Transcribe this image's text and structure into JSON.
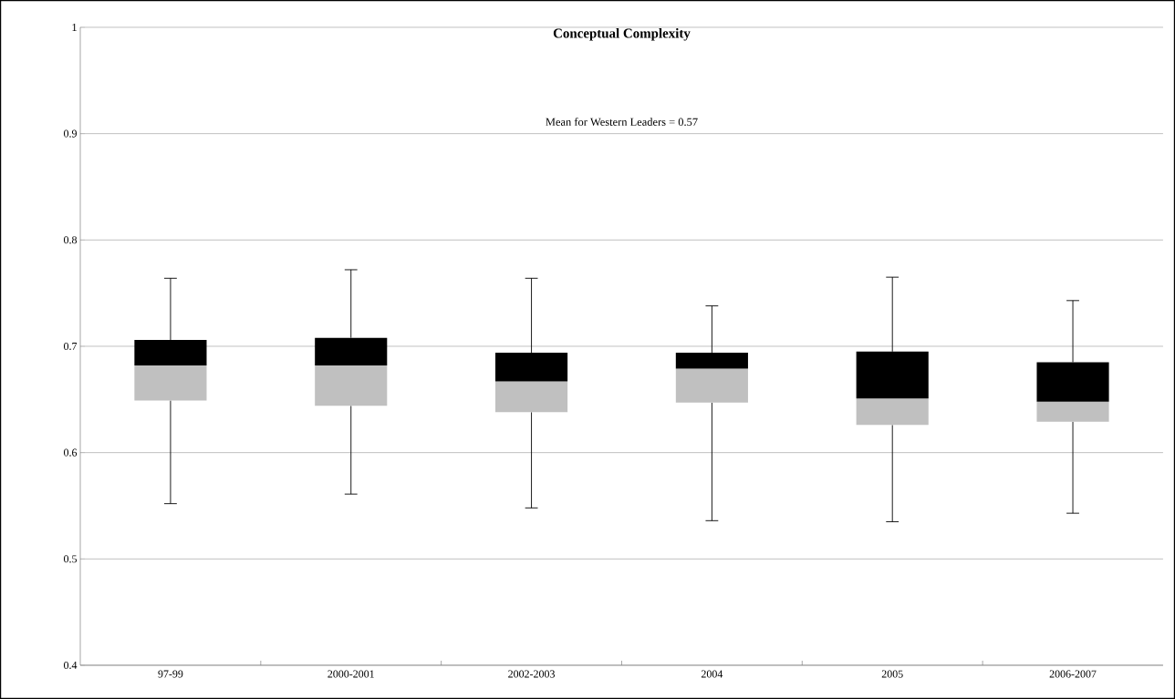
{
  "chart_data": {
    "type": "box",
    "title": "Conceptual Complexity",
    "annotations": [
      "Mean for Western Leaders = 0.57"
    ],
    "categories": [
      "97-99",
      "2000-2001",
      "2002-2003",
      "2004",
      "2005",
      "2006-2007"
    ],
    "boxes": [
      {
        "low": 0.552,
        "q1": 0.649,
        "median": 0.682,
        "q3": 0.706,
        "high": 0.764
      },
      {
        "low": 0.561,
        "q1": 0.644,
        "median": 0.682,
        "q3": 0.708,
        "high": 0.772
      },
      {
        "low": 0.548,
        "q1": 0.638,
        "median": 0.667,
        "q3": 0.694,
        "high": 0.764
      },
      {
        "low": 0.536,
        "q1": 0.647,
        "median": 0.679,
        "q3": 0.694,
        "high": 0.738
      },
      {
        "low": 0.535,
        "q1": 0.626,
        "median": 0.651,
        "q3": 0.695,
        "high": 0.765
      },
      {
        "low": 0.543,
        "q1": 0.629,
        "median": 0.648,
        "q3": 0.685,
        "high": 0.743
      }
    ],
    "ylim": [
      0.4,
      1
    ],
    "yticks": [
      0.4,
      0.5,
      0.6,
      0.7,
      0.8,
      0.9,
      1
    ],
    "grid": "y"
  }
}
